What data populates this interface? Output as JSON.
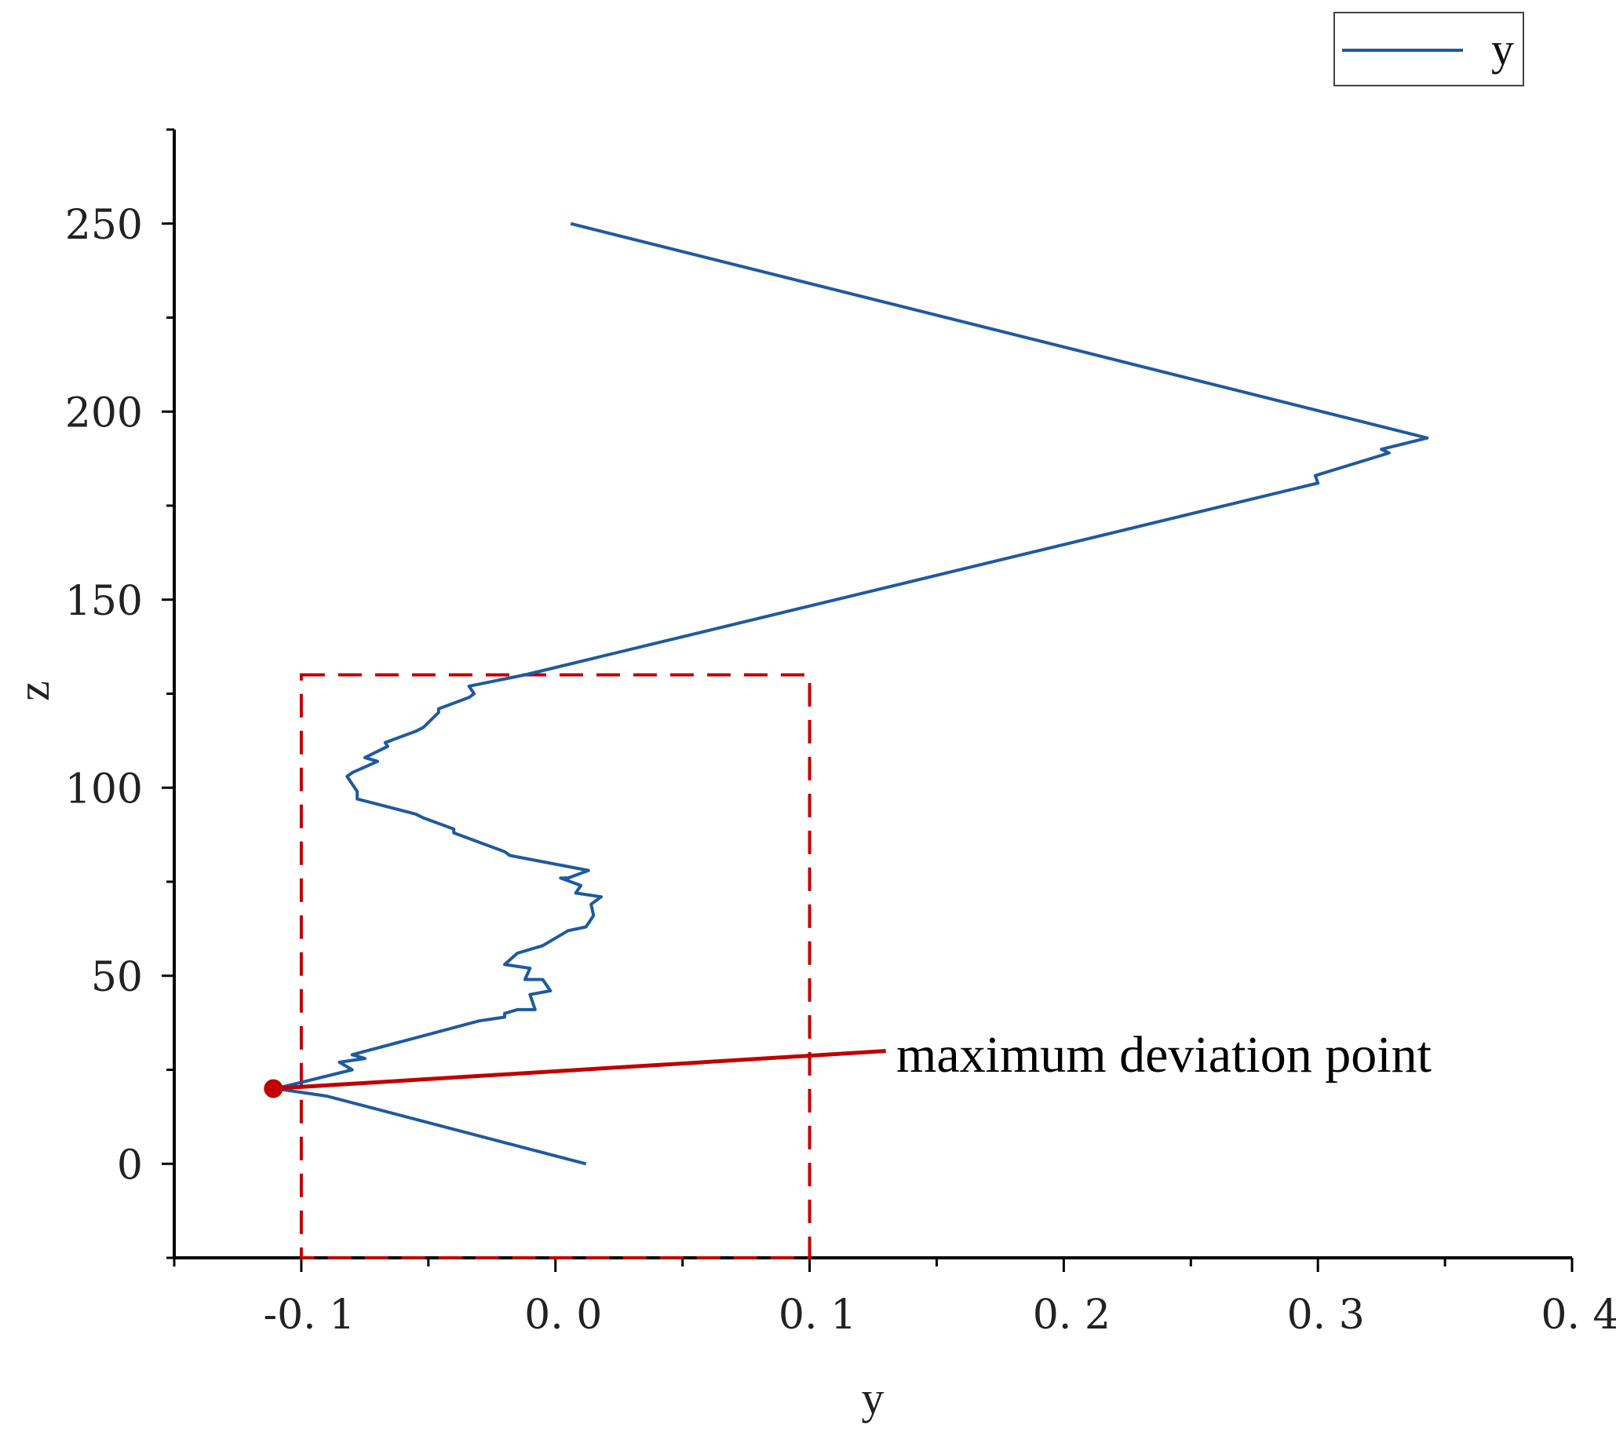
{
  "chart_data": {
    "type": "line",
    "title": "",
    "xlabel": "y",
    "ylabel": "z",
    "xlim": [
      -0.15,
      0.4
    ],
    "ylim": [
      -25,
      275
    ],
    "x_ticks": [
      {
        "value": -0.1,
        "label": "-0. 1"
      },
      {
        "value": 0.0,
        "label": "0. 0"
      },
      {
        "value": 0.1,
        "label": "0. 1"
      },
      {
        "value": 0.2,
        "label": "0. 2"
      },
      {
        "value": 0.3,
        "label": "0. 3"
      },
      {
        "value": 0.4,
        "label": "0. 4"
      }
    ],
    "x_minor_ticks": [
      -0.15,
      -0.05,
      0.05,
      0.15,
      0.25,
      0.35
    ],
    "y_ticks": [
      {
        "value": 0,
        "label": "0"
      },
      {
        "value": 50,
        "label": "50"
      },
      {
        "value": 100,
        "label": "100"
      },
      {
        "value": 150,
        "label": "150"
      },
      {
        "value": 200,
        "label": "200"
      },
      {
        "value": 250,
        "label": "250"
      }
    ],
    "y_minor_ticks": [
      -25,
      25,
      75,
      125,
      175,
      225,
      275
    ],
    "grid": false,
    "legend": {
      "position": "top-right",
      "entries": [
        "y"
      ]
    },
    "series": [
      {
        "name": "y",
        "color": "#1f5a9e",
        "x": [
          0.012,
          -0.09,
          -0.11,
          -0.08,
          -0.085,
          -0.075,
          -0.08,
          -0.03,
          -0.02,
          -0.02,
          -0.015,
          -0.008,
          -0.01,
          -0.002,
          -0.005,
          -0.012,
          -0.01,
          -0.02,
          -0.015,
          -0.005,
          0.0,
          0.005,
          0.012,
          0.015,
          0.014,
          0.018,
          0.008,
          0.01,
          0.002,
          0.005,
          0.013,
          -0.018,
          -0.02,
          -0.04,
          -0.04,
          -0.052,
          -0.055,
          -0.078,
          -0.078,
          -0.082,
          -0.08,
          -0.07,
          -0.075,
          -0.066,
          -0.067,
          -0.055,
          -0.052,
          -0.046,
          -0.046,
          -0.034,
          -0.032,
          -0.034,
          -0.012,
          0.3,
          0.299,
          0.328,
          0.325,
          0.343,
          0.006
        ],
        "y": [
          0,
          18,
          20,
          25,
          27,
          28,
          29,
          38,
          39,
          40,
          41,
          41,
          45,
          46,
          49,
          49,
          52,
          53,
          56,
          58,
          60,
          62,
          63,
          66,
          69,
          71,
          72,
          74,
          76,
          76,
          78,
          82,
          83,
          88,
          89,
          92,
          93,
          97,
          99,
          103,
          104,
          107,
          108,
          111,
          112,
          115,
          116,
          120,
          121,
          124,
          125,
          127,
          130,
          181,
          183,
          189,
          190,
          193,
          250
        ]
      }
    ],
    "annotations": [
      {
        "type": "highlight-box",
        "style": "dashed",
        "color": "#c00000",
        "x_range": [
          -0.1,
          0.1
        ],
        "y_range": [
          -25,
          130
        ]
      },
      {
        "type": "point",
        "color": "#c00000",
        "x": -0.111,
        "z": 20
      },
      {
        "type": "callout",
        "text": "maximum deviation point",
        "color": "#c00000",
        "from": {
          "x": -0.111,
          "z": 20
        },
        "to": {
          "x": 0.13,
          "z": 30
        }
      }
    ]
  }
}
